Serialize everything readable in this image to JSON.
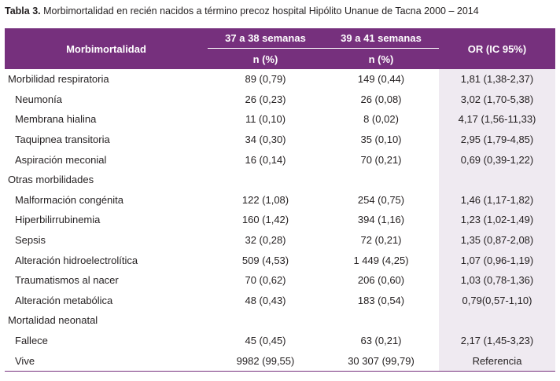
{
  "caption": {
    "label": "Tabla 3.",
    "text": "Morbimortalidad en recién nacidos a término precoz hospital Hipólito Unanue de Tacna 2000 – 2014"
  },
  "header": {
    "col0": "Morbimortalidad",
    "col1": "37 a 38 semanas",
    "col2": "39 a 41 semanas",
    "col3": "OR (IC 95%)",
    "sub1": "n (%)",
    "sub2": "n (%)"
  },
  "rows": [
    {
      "label": "Morbilidad respiratoria",
      "v1": "89 (0,79)",
      "v2": "149 (0,44)",
      "or": "1,81 (1,38-2,37)"
    },
    {
      "label": "Neumonía",
      "v1": "26 (0,23)",
      "v2": "26 (0,08)",
      "or": "3,02 (1,70-5,38)"
    },
    {
      "label": "Membrana hialina",
      "v1": "11 (0,10)",
      "v2": "8 (0,02)",
      "or": "4,17 (1,56-11,33)"
    },
    {
      "label": "Taquipnea transitoria",
      "v1": "34 (0,30)",
      "v2": "35 (0,10)",
      "or": "2,95 (1,79-4,85)"
    },
    {
      "label": "Aspiración meconial",
      "v1": "16 (0,14)",
      "v2": "70 (0,21)",
      "or": "0,69 (0,39-1,22)"
    },
    {
      "label": "Otras morbilidades",
      "v1": "",
      "v2": "",
      "or": ""
    },
    {
      "label": "Malformación congénita",
      "v1": "122 (1,08)",
      "v2": "254 (0,75)",
      "or": "1,46 (1,17-1,82)"
    },
    {
      "label": "Hiperbilirrubinemia",
      "v1": "160 (1,42)",
      "v2": "394 (1,16)",
      "or": "1,23 (1,02-1,49)"
    },
    {
      "label": "Sepsis",
      "v1": "32 (0,28)",
      "v2": "72 (0,21)",
      "or": "1,35 (0,87-2,08)"
    },
    {
      "label": "Alteración hidroelectrolítica",
      "v1": "509 (4,53)",
      "v2": "1 449 (4,25)",
      "or": "1,07 (0,96-1,19)"
    },
    {
      "label": "Traumatismos al nacer",
      "v1": "70 (0,62)",
      "v2": "206 (0,60)",
      "or": "1,03 (0,78-1,36)"
    },
    {
      "label": "Alteración metabólica",
      "v1": "48 (0,43)",
      "v2": "183 (0,54)",
      "or": "0,79(0,57-1,10)"
    },
    {
      "label": "Mortalidad neonatal",
      "v1": "",
      "v2": "",
      "or": ""
    },
    {
      "label": "Fallece",
      "v1": "45 (0,45)",
      "v2": "63 (0,21)",
      "or": "2,17 (1,45-3,23)"
    },
    {
      "label": "Vive",
      "v1": "9982 (99,55)",
      "v2": "30 307 (99,79)",
      "or": "Referencia"
    }
  ],
  "colors": {
    "header_bg": "#76307d",
    "or_column_bg": "#efeaf1",
    "text": "#231f20"
  }
}
